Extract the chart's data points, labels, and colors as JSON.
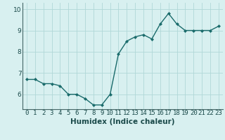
{
  "x": [
    0,
    1,
    2,
    3,
    4,
    5,
    6,
    7,
    8,
    9,
    10,
    11,
    12,
    13,
    14,
    15,
    16,
    17,
    18,
    19,
    20,
    21,
    22,
    23
  ],
  "y": [
    6.7,
    6.7,
    6.5,
    6.5,
    6.4,
    6.0,
    6.0,
    5.8,
    5.5,
    5.5,
    6.0,
    7.9,
    8.5,
    8.7,
    8.8,
    8.6,
    9.3,
    9.8,
    9.3,
    9.0,
    9.0,
    9.0,
    9.0,
    9.2
  ],
  "line_color": "#1a6b6b",
  "marker": "D",
  "marker_size": 2.0,
  "bg_color": "#d8f0f0",
  "grid_color": "#b0d8d8",
  "xlabel": "Humidex (Indice chaleur)",
  "xlim": [
    -0.5,
    23.5
  ],
  "ylim": [
    5.3,
    10.3
  ],
  "yticks": [
    6,
    7,
    8,
    9,
    10
  ],
  "xlabel_fontsize": 7.5,
  "tick_fontsize": 6.5,
  "line_width": 1.0
}
